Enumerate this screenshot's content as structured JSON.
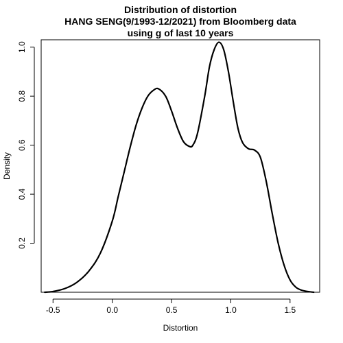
{
  "chart_data": {
    "type": "line",
    "title_lines": [
      "Distribution of distortion",
      "HANG SENG(9/1993-12/2021) from Bloomberg data",
      "using g of last 10 years"
    ],
    "xlabel": "Distortion",
    "ylabel": "Density",
    "xlim": [
      -0.6,
      1.75
    ],
    "ylim": [
      0.0,
      1.03
    ],
    "x_ticks": [
      -0.5,
      0.0,
      0.5,
      1.0,
      1.5
    ],
    "x_tick_labels": [
      "-0.5",
      "0.0",
      "0.5",
      "1.0",
      "1.5"
    ],
    "y_ticks": [
      0.2,
      0.4,
      0.6,
      0.8,
      1.0
    ],
    "y_tick_labels": [
      "0.2",
      "0.4",
      "0.6",
      "0.8",
      "1.0"
    ],
    "grid": false,
    "line_color": "#000000",
    "series": [
      {
        "x": [
          -0.57,
          -0.5,
          -0.4,
          -0.3,
          -0.2,
          -0.1,
          0.0,
          0.05,
          0.1,
          0.15,
          0.2,
          0.25,
          0.3,
          0.35,
          0.39,
          0.45,
          0.5,
          0.55,
          0.6,
          0.65,
          0.68,
          0.72,
          0.78,
          0.82,
          0.86,
          0.9,
          0.94,
          0.98,
          1.02,
          1.06,
          1.1,
          1.15,
          1.2,
          1.25,
          1.3,
          1.35,
          1.4,
          1.45,
          1.5,
          1.55,
          1.6,
          1.65,
          1.7
        ],
        "y": [
          0.0,
          0.003,
          0.015,
          0.04,
          0.085,
          0.16,
          0.29,
          0.39,
          0.49,
          0.59,
          0.68,
          0.75,
          0.8,
          0.825,
          0.83,
          0.8,
          0.74,
          0.67,
          0.615,
          0.595,
          0.6,
          0.65,
          0.8,
          0.92,
          0.99,
          1.02,
          0.99,
          0.9,
          0.78,
          0.67,
          0.61,
          0.585,
          0.58,
          0.55,
          0.45,
          0.32,
          0.2,
          0.11,
          0.05,
          0.02,
          0.008,
          0.003,
          0.0
        ]
      }
    ]
  }
}
